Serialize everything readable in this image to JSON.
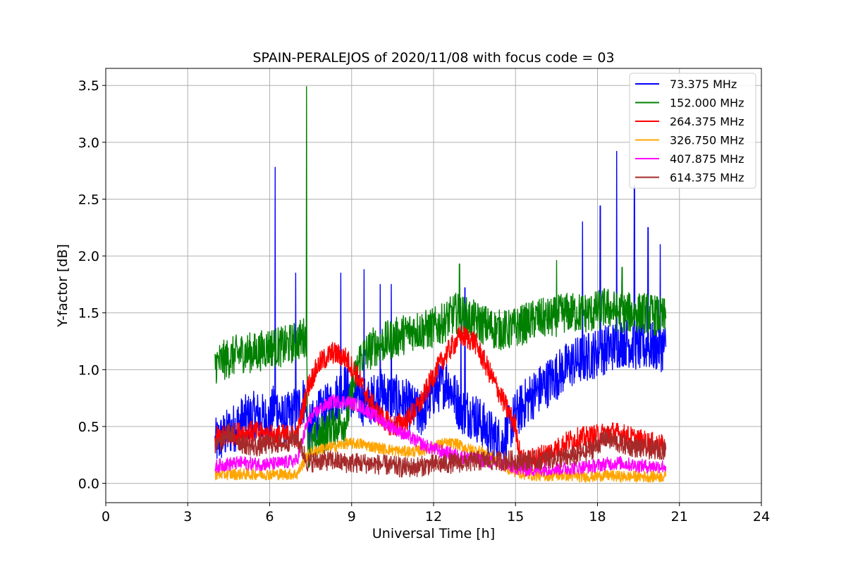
{
  "chart_data": {
    "type": "line",
    "title": "SPAIN-PERALEJOS of 2020/11/08 with focus code = 03",
    "xlabel": "Universal Time [h]",
    "ylabel": "Y-factor [dB]",
    "xlim": [
      0,
      24
    ],
    "ylim": [
      -0.17,
      3.65
    ],
    "xticks": [
      0,
      3,
      6,
      9,
      12,
      15,
      18,
      21,
      24
    ],
    "xtick_labels": [
      "0",
      "3",
      "6",
      "9",
      "12",
      "15",
      "18",
      "21",
      "24"
    ],
    "yticks": [
      0.0,
      0.5,
      1.0,
      1.5,
      2.0,
      2.5,
      3.0,
      3.5
    ],
    "ytick_labels": [
      "0.0",
      "0.5",
      "1.0",
      "1.5",
      "2.0",
      "2.5",
      "3.0",
      "3.5"
    ],
    "grid": true,
    "legend_position": "top-right",
    "series": [
      {
        "name": "  73.375 MHz",
        "color": "#0000ff",
        "x": [
          4.0,
          4.5,
          5.0,
          5.5,
          6.0,
          6.2,
          6.5,
          7.0,
          7.3,
          7.4,
          7.8,
          8.3,
          8.7,
          9.2,
          9.6,
          10.0,
          10.5,
          11.0,
          11.5,
          12.0,
          12.5,
          13.0,
          13.5,
          14.0,
          14.5,
          15.0,
          15.5,
          16.0,
          16.5,
          17.0,
          17.5,
          18.0,
          18.5,
          19.0,
          19.5,
          20.0,
          20.5
        ],
        "y": [
          0.35,
          0.45,
          0.55,
          0.6,
          0.55,
          0.7,
          0.55,
          0.65,
          0.75,
          0.45,
          0.6,
          0.7,
          0.85,
          0.75,
          0.7,
          0.8,
          0.75,
          0.7,
          0.6,
          0.8,
          0.9,
          0.65,
          0.6,
          0.45,
          0.35,
          0.6,
          0.75,
          0.85,
          0.95,
          1.05,
          1.1,
          1.15,
          1.2,
          1.25,
          1.2,
          1.2,
          1.2
        ],
        "spikes": [
          [
            6.2,
            2.78
          ],
          [
            6.95,
            1.85
          ],
          [
            8.6,
            1.85
          ],
          [
            9.45,
            1.88
          ],
          [
            10.05,
            1.75
          ],
          [
            10.45,
            1.75
          ],
          [
            13.0,
            1.55
          ],
          [
            13.15,
            1.72
          ],
          [
            17.45,
            2.3
          ],
          [
            18.1,
            2.44
          ],
          [
            18.7,
            2.92
          ],
          [
            19.35,
            2.62
          ],
          [
            19.85,
            2.25
          ],
          [
            20.3,
            2.1
          ]
        ]
      },
      {
        "name": "152.000 MHz",
        "color": "#008000",
        "x": [
          4.0,
          4.5,
          5.0,
          5.5,
          6.0,
          6.5,
          7.0,
          7.35,
          7.4,
          7.8,
          8.3,
          8.8,
          9.3,
          9.8,
          10.3,
          10.8,
          11.3,
          11.8,
          12.3,
          12.8,
          13.3,
          13.8,
          14.3,
          14.8,
          15.3,
          15.8,
          16.3,
          16.8,
          17.3,
          17.8,
          18.3,
          18.8,
          19.3,
          19.8,
          20.5
        ],
        "y": [
          1.05,
          1.1,
          1.15,
          1.15,
          1.2,
          1.2,
          1.25,
          1.3,
          0.3,
          0.4,
          0.5,
          0.55,
          1.1,
          1.2,
          1.25,
          1.3,
          1.35,
          1.35,
          1.4,
          1.5,
          1.45,
          1.4,
          1.35,
          1.35,
          1.4,
          1.45,
          1.45,
          1.5,
          1.5,
          1.5,
          1.55,
          1.5,
          1.5,
          1.5,
          1.45
        ],
        "spikes": [
          [
            7.35,
            3.49
          ],
          [
            12.95,
            1.93
          ],
          [
            16.5,
            1.96
          ],
          [
            18.9,
            1.9
          ]
        ]
      },
      {
        "name": "264.375 MHz",
        "color": "#ff0000",
        "x": [
          4.0,
          4.5,
          5.0,
          5.5,
          6.0,
          6.5,
          7.0,
          7.4,
          7.8,
          8.3,
          8.8,
          9.2,
          9.6,
          10.0,
          10.5,
          11.0,
          11.5,
          12.0,
          12.5,
          13.0,
          13.5,
          14.0,
          14.5,
          15.0,
          15.2,
          15.5,
          16.0,
          16.5,
          17.0,
          17.5,
          18.0,
          18.5,
          19.0,
          19.5,
          20.0,
          20.5
        ],
        "y": [
          0.4,
          0.42,
          0.45,
          0.45,
          0.42,
          0.42,
          0.42,
          0.85,
          1.05,
          1.15,
          1.1,
          0.95,
          0.75,
          0.6,
          0.5,
          0.55,
          0.7,
          0.95,
          1.15,
          1.3,
          1.25,
          1.0,
          0.75,
          0.5,
          0.2,
          0.2,
          0.25,
          0.3,
          0.38,
          0.4,
          0.42,
          0.45,
          0.42,
          0.38,
          0.35,
          0.32
        ],
        "spikes": []
      },
      {
        "name": "326.750 MHz",
        "color": "#ffa500",
        "x": [
          4.0,
          4.5,
          5.0,
          5.5,
          6.0,
          6.5,
          7.0,
          7.4,
          7.8,
          8.3,
          8.8,
          9.3,
          9.8,
          10.3,
          10.8,
          11.3,
          11.8,
          12.3,
          12.8,
          13.3,
          13.8,
          14.3,
          14.8,
          15.3,
          15.8,
          16.3,
          16.8,
          17.3,
          17.8,
          18.3,
          18.8,
          19.3,
          19.8,
          20.5
        ],
        "y": [
          0.08,
          0.08,
          0.08,
          0.08,
          0.08,
          0.08,
          0.08,
          0.25,
          0.3,
          0.32,
          0.35,
          0.35,
          0.32,
          0.3,
          0.28,
          0.28,
          0.3,
          0.35,
          0.35,
          0.3,
          0.28,
          0.2,
          0.12,
          0.08,
          0.07,
          0.07,
          0.07,
          0.06,
          0.06,
          0.07,
          0.06,
          0.06,
          0.06,
          0.06
        ],
        "spikes": []
      },
      {
        "name": "407.875 MHz",
        "color": "#ff00ff",
        "x": [
          4.0,
          4.5,
          5.0,
          5.5,
          6.0,
          6.5,
          7.0,
          7.4,
          7.8,
          8.3,
          8.8,
          9.3,
          9.8,
          10.3,
          10.8,
          11.3,
          11.8,
          12.3,
          12.8,
          13.3,
          13.8,
          14.3,
          14.8,
          15.3,
          15.8,
          16.3,
          16.8,
          17.3,
          17.8,
          18.3,
          18.8,
          19.3,
          19.8,
          20.5
        ],
        "y": [
          0.15,
          0.17,
          0.18,
          0.17,
          0.17,
          0.18,
          0.2,
          0.55,
          0.65,
          0.72,
          0.72,
          0.68,
          0.6,
          0.52,
          0.45,
          0.38,
          0.32,
          0.28,
          0.25,
          0.22,
          0.2,
          0.18,
          0.15,
          0.12,
          0.12,
          0.13,
          0.13,
          0.14,
          0.15,
          0.17,
          0.18,
          0.16,
          0.15,
          0.15
        ],
        "spikes": []
      },
      {
        "name": "614.375 MHz",
        "color": "#a52a2a",
        "x": [
          4.0,
          4.5,
          5.0,
          5.5,
          6.0,
          6.5,
          7.0,
          7.4,
          7.8,
          8.3,
          8.8,
          9.3,
          9.8,
          10.3,
          10.8,
          11.3,
          11.8,
          12.3,
          12.8,
          13.3,
          13.8,
          14.3,
          14.8,
          15.3,
          15.8,
          16.3,
          16.8,
          17.3,
          17.8,
          18.3,
          18.8,
          19.3,
          19.8,
          20.5
        ],
        "y": [
          0.3,
          0.45,
          0.35,
          0.32,
          0.35,
          0.35,
          0.4,
          0.18,
          0.2,
          0.2,
          0.18,
          0.18,
          0.17,
          0.16,
          0.14,
          0.14,
          0.16,
          0.17,
          0.18,
          0.19,
          0.2,
          0.2,
          0.2,
          0.2,
          0.2,
          0.22,
          0.22,
          0.25,
          0.3,
          0.4,
          0.35,
          0.32,
          0.3,
          0.3
        ],
        "spikes": []
      }
    ]
  }
}
